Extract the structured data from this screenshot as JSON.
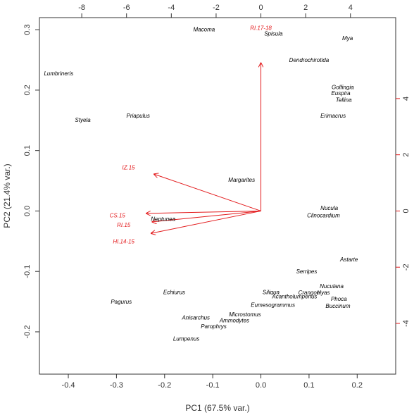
{
  "chart_data": {
    "type": "scatter",
    "subtype": "pca-biplot",
    "xlabel": "PC1 (67.5% var.)",
    "ylabel": "PC2 (21.4% var.)",
    "xlim": [
      -0.46,
      0.28
    ],
    "ylim": [
      -0.27,
      0.32
    ],
    "x_ticks": [
      -0.4,
      -0.3,
      -0.2,
      -0.1,
      0.0,
      0.1,
      0.2
    ],
    "x_tick_labels": [
      "-0.4",
      "-0.3",
      "-0.2",
      "-0.1",
      "0.0",
      "0.1",
      "0.2"
    ],
    "y_ticks": [
      -0.2,
      -0.1,
      0.0,
      0.1,
      0.2,
      0.3
    ],
    "y_tick_labels": [
      "-0.2",
      "-0.1",
      "0.0",
      "0.1",
      "0.2",
      "0.3"
    ],
    "secondary_x_ticks": [
      -8,
      -6,
      -4,
      -2,
      0,
      2,
      4
    ],
    "secondary_x_tick_labels": [
      "-8",
      "-6",
      "-4",
      "-2",
      "0",
      "2",
      "4"
    ],
    "secondary_y_ticks": [
      -4,
      -2,
      0,
      2,
      4
    ],
    "secondary_y_tick_labels": [
      "-4",
      "-2",
      "0",
      "2",
      "4"
    ],
    "secondary_scale": 21.5,
    "grid": false,
    "legend": "none",
    "colors": {
      "species": "#000000",
      "loadings": "#e31a1c",
      "axes": "#333333"
    },
    "species": [
      {
        "name": "Macoma",
        "x": -0.118,
        "y": 0.301
      },
      {
        "name": "Spisula",
        "x": 0.026,
        "y": 0.294
      },
      {
        "name": "Mya",
        "x": 0.18,
        "y": 0.286
      },
      {
        "name": "Dendrochirotida",
        "x": 0.1,
        "y": 0.25
      },
      {
        "name": "Lumbrineris",
        "x": -0.42,
        "y": 0.228
      },
      {
        "name": "Golfingia",
        "x": 0.17,
        "y": 0.205
      },
      {
        "name": "Euspira",
        "x": 0.166,
        "y": 0.195
      },
      {
        "name": "Tellina",
        "x": 0.172,
        "y": 0.184
      },
      {
        "name": "Priapulus",
        "x": -0.255,
        "y": 0.158
      },
      {
        "name": "Erimacrus",
        "x": 0.15,
        "y": 0.158
      },
      {
        "name": "Styela",
        "x": -0.37,
        "y": 0.151
      },
      {
        "name": "Margarites",
        "x": -0.04,
        "y": 0.052
      },
      {
        "name": "Nucula",
        "x": 0.142,
        "y": 0.005
      },
      {
        "name": "Clinocardium",
        "x": 0.13,
        "y": -0.007
      },
      {
        "name": "Neptunea",
        "x": -0.203,
        "y": -0.013
      },
      {
        "name": "Astarte",
        "x": 0.183,
        "y": -0.08
      },
      {
        "name": "Serripes",
        "x": 0.095,
        "y": -0.1
      },
      {
        "name": "Nuculana",
        "x": 0.147,
        "y": -0.124
      },
      {
        "name": "Siliqua",
        "x": 0.021,
        "y": -0.134
      },
      {
        "name": "Crangon",
        "x": 0.1,
        "y": -0.135
      },
      {
        "name": "Hyas",
        "x": 0.13,
        "y": -0.135
      },
      {
        "name": "Echiurus",
        "x": -0.18,
        "y": -0.134
      },
      {
        "name": "Acantholumpenus",
        "x": 0.07,
        "y": -0.141
      },
      {
        "name": "Phoca",
        "x": 0.162,
        "y": -0.145
      },
      {
        "name": "Pagurus",
        "x": -0.29,
        "y": -0.15
      },
      {
        "name": "Eumesogrammus",
        "x": 0.025,
        "y": -0.155
      },
      {
        "name": "Buccinum",
        "x": 0.16,
        "y": -0.157
      },
      {
        "name": "Microstomus",
        "x": -0.033,
        "y": -0.171
      },
      {
        "name": "Anisarchus",
        "x": -0.135,
        "y": -0.176
      },
      {
        "name": "Ammodytes",
        "x": -0.055,
        "y": -0.181
      },
      {
        "name": "Parophrys",
        "x": -0.098,
        "y": -0.191
      },
      {
        "name": "Lumpenus",
        "x": -0.155,
        "y": -0.211
      }
    ],
    "loadings": [
      {
        "name": "RI.17-18",
        "x": 0.0,
        "y": 0.245,
        "label_x": 0.0,
        "label_y": 0.303
      },
      {
        "name": "IZ.15",
        "x": -0.222,
        "y": 0.061,
        "label_x": -0.275,
        "label_y": 0.072
      },
      {
        "name": "CS.15",
        "x": -0.238,
        "y": -0.004,
        "label_x": -0.298,
        "label_y": -0.007
      },
      {
        "name": "RI.15",
        "x": -0.226,
        "y": -0.018,
        "label_x": -0.285,
        "label_y": -0.023
      },
      {
        "name": "HI.14-15",
        "x": -0.228,
        "y": -0.037,
        "label_x": -0.285,
        "label_y": -0.05
      }
    ]
  }
}
